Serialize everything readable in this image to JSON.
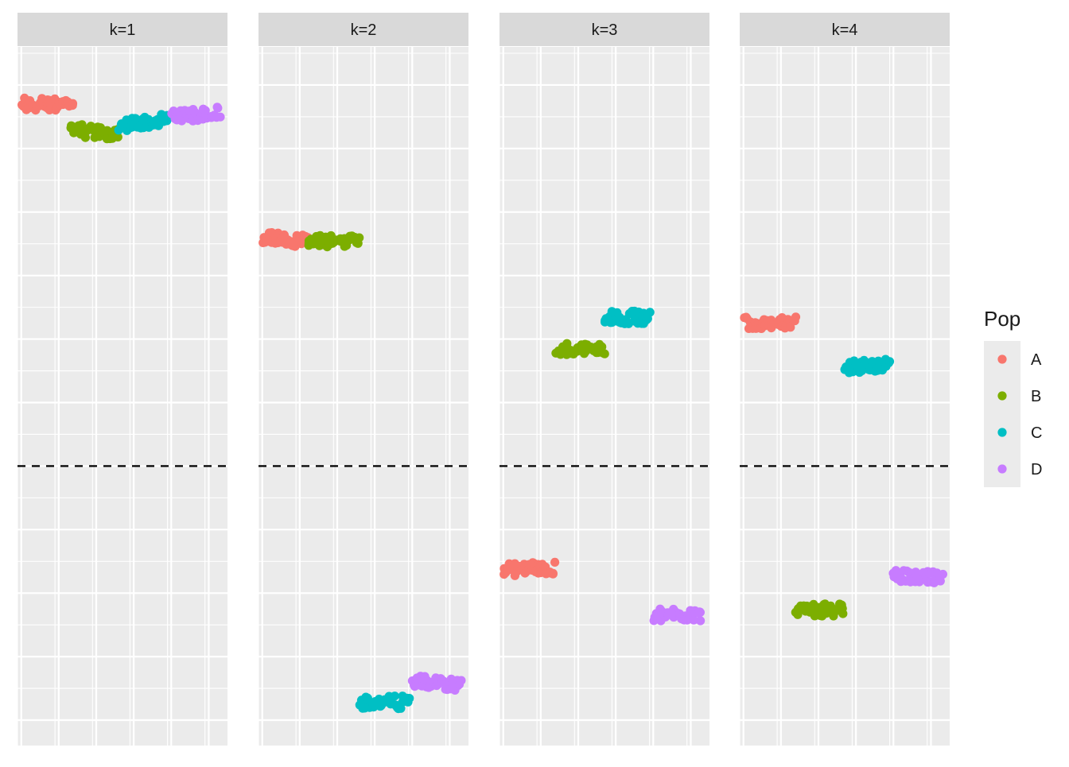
{
  "chart_data": {
    "type": "scatter",
    "title": "",
    "xlabel": "",
    "ylabel": "",
    "facets": [
      "k=1",
      "k=2",
      "k=3",
      "k=4"
    ],
    "legend": {
      "title": "Pop",
      "position": "right",
      "entries": [
        {
          "label": "A",
          "color": "#F8766D"
        },
        {
          "label": "B",
          "color": "#7CAE00"
        },
        {
          "label": "C",
          "color": "#00BFC4"
        },
        {
          "label": "D",
          "color": "#C77CFF"
        }
      ]
    },
    "x_range": [
      -0.5,
      27.5
    ],
    "y_range": [
      -2.2,
      3.3
    ],
    "reference_line": {
      "y": 0,
      "style": "dashed"
    },
    "axis_ticks_visible": false,
    "grid": true,
    "points_per_group": 40,
    "jitter": {
      "x": 0.35,
      "y": 0.05
    },
    "groups": [
      {
        "facet": "k=1",
        "pop": "A",
        "x_from": 0,
        "x_to": 7,
        "y_left": 2.85,
        "y_right": 2.85
      },
      {
        "facet": "k=1",
        "pop": "B",
        "x_from": 6.5,
        "x_to": 13,
        "y_left": 2.65,
        "y_right": 2.6
      },
      {
        "facet": "k=1",
        "pop": "C",
        "x_from": 13,
        "x_to": 19.5,
        "y_left": 2.68,
        "y_right": 2.73
      },
      {
        "facet": "k=1",
        "pop": "D",
        "x_from": 20,
        "x_to": 26.5,
        "y_left": 2.75,
        "y_right": 2.78
      },
      {
        "facet": "k=2",
        "pop": "A",
        "x_from": 0,
        "x_to": 6,
        "y_left": 1.8,
        "y_right": 1.77
      },
      {
        "facet": "k=2",
        "pop": "B",
        "x_from": 6,
        "x_to": 13,
        "y_left": 1.76,
        "y_right": 1.78
      },
      {
        "facet": "k=2",
        "pop": "C",
        "x_from": 13,
        "x_to": 19.5,
        "y_left": -1.86,
        "y_right": -1.86
      },
      {
        "facet": "k=2",
        "pop": "D",
        "x_from": 20,
        "x_to": 26.5,
        "y_left": -1.7,
        "y_right": -1.72
      },
      {
        "facet": "k=3",
        "pop": "A",
        "x_from": 0,
        "x_to": 7,
        "y_left": -0.82,
        "y_right": -0.8
      },
      {
        "facet": "k=3",
        "pop": "B",
        "x_from": 7,
        "x_to": 13.5,
        "y_left": 0.92,
        "y_right": 0.92
      },
      {
        "facet": "k=3",
        "pop": "C",
        "x_from": 13.5,
        "x_to": 19.5,
        "y_left": 1.17,
        "y_right": 1.17
      },
      {
        "facet": "k=3",
        "pop": "D",
        "x_from": 20,
        "x_to": 26.5,
        "y_left": -1.17,
        "y_right": -1.17
      },
      {
        "facet": "k=4",
        "pop": "A",
        "x_from": 0,
        "x_to": 7,
        "y_left": 1.13,
        "y_right": 1.13
      },
      {
        "facet": "k=4",
        "pop": "B",
        "x_from": 7,
        "x_to": 13.5,
        "y_left": -1.14,
        "y_right": -1.13
      },
      {
        "facet": "k=4",
        "pop": "C",
        "x_from": 13.5,
        "x_to": 19.5,
        "y_left": 0.78,
        "y_right": 0.8
      },
      {
        "facet": "k=4",
        "pop": "D",
        "x_from": 20,
        "x_to": 26.5,
        "y_left": -0.87,
        "y_right": -0.87
      }
    ]
  },
  "style": {
    "panel_background": "#EBEBEB",
    "strip_background": "#D9D9D9",
    "grid_color": "#FFFFFF",
    "text_color": "#1A1A1A",
    "reference_line_color": "#000000"
  }
}
